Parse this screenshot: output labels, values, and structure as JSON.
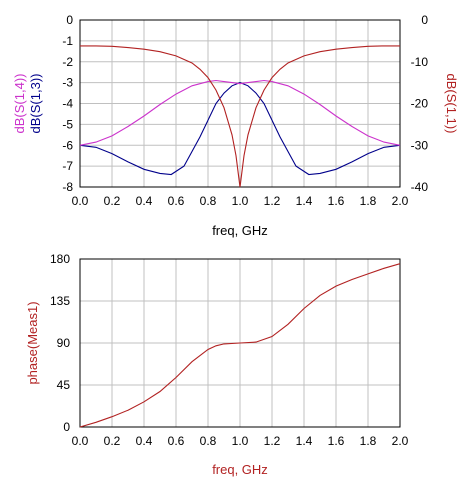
{
  "colors": {
    "grid": "#c0c0c0",
    "frame": "#000000",
    "s13": "#00008b",
    "s14": "#cc33cc",
    "s11": "#b22222",
    "phase": "#b22222",
    "axis_text": "#000000"
  },
  "chart_data": [
    {
      "type": "line",
      "xlabel": "freq, GHz",
      "ylabel_left": [
        "dB(S(1,4))",
        "dB(S(1,3))"
      ],
      "ylabel_right": "dB(S(1,1))",
      "xlim": [
        0,
        2.0
      ],
      "ylim_left": [
        -8,
        0
      ],
      "ylim_right": [
        -40,
        0
      ],
      "grid": true,
      "x_ticks": [
        "0.0",
        "0.2",
        "0.4",
        "0.6",
        "0.8",
        "1.0",
        "1.2",
        "1.4",
        "1.6",
        "1.8",
        "2.0"
      ],
      "y_ticks_left": [
        "0",
        "-1",
        "-2",
        "-3",
        "-4",
        "-5",
        "-6",
        "-7",
        "-8"
      ],
      "y_ticks_right": [
        "0",
        "-10",
        "-20",
        "-30",
        "-40"
      ],
      "series": [
        {
          "name": "dB(S(1,3))",
          "axis": "left",
          "color_key": "s13",
          "x": [
            0.0,
            0.1,
            0.2,
            0.3,
            0.4,
            0.5,
            0.57,
            0.65,
            0.75,
            0.85,
            0.9,
            0.95,
            1.0,
            1.05,
            1.1,
            1.15,
            1.25,
            1.35,
            1.43,
            1.5,
            1.6,
            1.7,
            1.8,
            1.9,
            2.0
          ],
          "y": [
            -6.0,
            -6.1,
            -6.4,
            -6.8,
            -7.15,
            -7.35,
            -7.4,
            -7.0,
            -5.6,
            -4.0,
            -3.5,
            -3.15,
            -3.0,
            -3.15,
            -3.5,
            -4.0,
            -5.6,
            -7.0,
            -7.4,
            -7.35,
            -7.15,
            -6.8,
            -6.4,
            -6.1,
            -6.0
          ]
        },
        {
          "name": "dB(S(1,4))",
          "axis": "left",
          "color_key": "s14",
          "x": [
            0.0,
            0.1,
            0.2,
            0.3,
            0.4,
            0.5,
            0.6,
            0.7,
            0.8,
            0.85,
            0.9,
            0.95,
            1.0,
            1.05,
            1.1,
            1.15,
            1.2,
            1.3,
            1.4,
            1.5,
            1.6,
            1.7,
            1.8,
            1.9,
            2.0
          ],
          "y": [
            -6.0,
            -5.85,
            -5.55,
            -5.1,
            -4.6,
            -4.05,
            -3.55,
            -3.15,
            -2.95,
            -2.9,
            -2.95,
            -3.0,
            -3.05,
            -3.0,
            -2.95,
            -2.9,
            -2.95,
            -3.15,
            -3.55,
            -4.05,
            -4.6,
            -5.1,
            -5.55,
            -5.85,
            -6.0
          ]
        },
        {
          "name": "dB(S(1,1))",
          "axis": "right",
          "color_key": "s11",
          "x": [
            0.0,
            0.1,
            0.2,
            0.3,
            0.4,
            0.5,
            0.6,
            0.7,
            0.75,
            0.8,
            0.85,
            0.9,
            0.95,
            0.975,
            0.99,
            1.0,
            1.01,
            1.025,
            1.05,
            1.1,
            1.15,
            1.2,
            1.25,
            1.3,
            1.4,
            1.5,
            1.6,
            1.7,
            1.8,
            1.9,
            2.0
          ],
          "y": [
            -6.2,
            -6.2,
            -6.3,
            -6.6,
            -7.0,
            -7.6,
            -8.6,
            -10.3,
            -11.8,
            -13.8,
            -16.8,
            -21.0,
            -27.5,
            -32.5,
            -37.0,
            -40.0,
            -37.0,
            -32.5,
            -27.5,
            -21.0,
            -16.8,
            -13.8,
            -11.8,
            -10.3,
            -8.6,
            -7.6,
            -7.0,
            -6.6,
            -6.3,
            -6.2,
            -6.2
          ]
        }
      ]
    },
    {
      "type": "line",
      "xlabel": "freq, GHz",
      "ylabel": "phase(Meas1)",
      "xlim": [
        0,
        2.0
      ],
      "ylim": [
        0,
        180
      ],
      "grid": true,
      "x_ticks": [
        "0.0",
        "0.2",
        "0.4",
        "0.6",
        "0.8",
        "1.0",
        "1.2",
        "1.4",
        "1.6",
        "1.8",
        "2.0"
      ],
      "y_ticks": [
        "180",
        "135",
        "90",
        "45",
        "0"
      ],
      "series": [
        {
          "name": "phase(Meas1)",
          "color_key": "phase",
          "x": [
            0.0,
            0.1,
            0.2,
            0.3,
            0.4,
            0.5,
            0.6,
            0.7,
            0.8,
            0.85,
            0.9,
            1.0,
            1.1,
            1.2,
            1.3,
            1.4,
            1.5,
            1.6,
            1.7,
            1.8,
            1.9,
            2.0
          ],
          "y": [
            0,
            5,
            11,
            18,
            27,
            38,
            53,
            70,
            83,
            87,
            89,
            90,
            91,
            97,
            110,
            127,
            141,
            151,
            158,
            164,
            170,
            175
          ]
        }
      ]
    }
  ]
}
